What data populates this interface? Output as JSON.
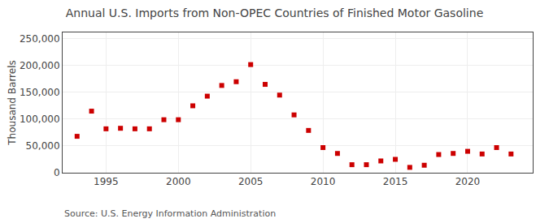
{
  "chart_data": {
    "type": "scatter",
    "title": "Annual U.S. Imports from Non-OPEC Countries of Finished Motor Gasoline",
    "ylabel": "Thousand Barrels",
    "annotations": [
      "Source: U.S. Energy Information Administration"
    ],
    "x": [
      1993,
      1994,
      1995,
      1996,
      1997,
      1998,
      1999,
      2000,
      2001,
      2002,
      2003,
      2004,
      2005,
      2006,
      2007,
      2008,
      2009,
      2010,
      2011,
      2012,
      2013,
      2014,
      2015,
      2016,
      2017,
      2018,
      2019,
      2020,
      2021,
      2022,
      2023
    ],
    "values": [
      68000,
      115000,
      82000,
      83000,
      82000,
      82000,
      99000,
      99000,
      125000,
      143000,
      163000,
      170000,
      202000,
      165000,
      145000,
      108000,
      79000,
      47000,
      36000,
      15000,
      15000,
      22000,
      25000,
      10000,
      14000,
      34000,
      36000,
      40000,
      35000,
      47000,
      35000
    ],
    "color": "#cc0000",
    "marker": "square",
    "xlim": [
      1992,
      2024.5
    ],
    "ylim": [
      0,
      262000
    ],
    "xticks": [
      1995,
      2000,
      2005,
      2010,
      2015,
      2020
    ],
    "yticks": [
      0,
      {
        "value": 50000,
        "label": "50,000"
      },
      {
        "value": 100000,
        "label": "100,000"
      },
      {
        "value": 150000,
        "label": "150,000"
      },
      {
        "value": 200000,
        "label": "200,000"
      },
      {
        "value": 250000,
        "label": "250,000"
      }
    ],
    "grid": true
  }
}
